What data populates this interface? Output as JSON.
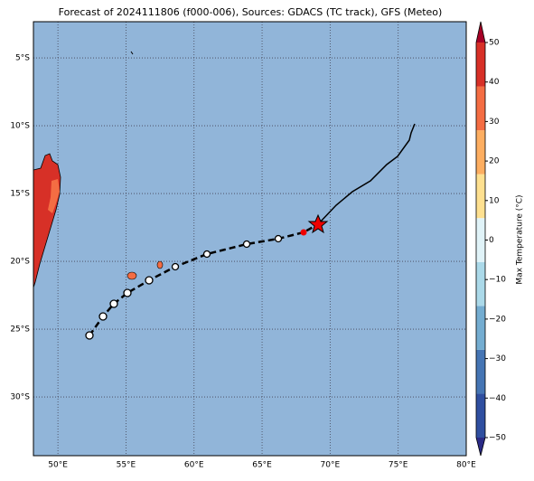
{
  "map": {
    "title": "Forecast of 2024111806 (f000-006), Sources: GDACS (TC track), GFS (Meteo)",
    "xlim": [
      48.2,
      80
    ],
    "ylim": [
      -34.33,
      -2.33
    ],
    "xticks": [
      {
        "value": 50,
        "label": "50°E"
      },
      {
        "value": 55,
        "label": "55°E"
      },
      {
        "value": 60,
        "label": "60°E"
      },
      {
        "value": 65,
        "label": "65°E"
      },
      {
        "value": 70,
        "label": "70°E"
      },
      {
        "value": 75,
        "label": "75°E"
      },
      {
        "value": 80,
        "label": "80°E"
      }
    ],
    "yticks": [
      {
        "value": -5,
        "label": "5°S"
      },
      {
        "value": -10,
        "label": "10°S"
      },
      {
        "value": -15,
        "label": "15°S"
      },
      {
        "value": -20,
        "label": "20°S"
      },
      {
        "value": -25,
        "label": "25°S"
      },
      {
        "value": -30,
        "label": "30°S"
      }
    ],
    "grid": true,
    "colorbar": {
      "label": "Max Temperature (°C)",
      "lim": [
        -50,
        50
      ],
      "ticks": [
        50,
        40,
        30,
        20,
        10,
        0,
        {
          "value": -10,
          "label": "−10"
        },
        {
          "value": -20,
          "label": "−20"
        },
        {
          "value": -30,
          "label": "−30"
        },
        {
          "value": -40,
          "label": "−40"
        },
        {
          "value": -50,
          "label": "−50"
        }
      ],
      "colors": [
        "#2a2a86",
        "#2f4fa0",
        "#4575b4",
        "#74add1",
        "#abd9e9",
        "#e0f3f8",
        "#fee090",
        "#fdae61",
        "#f46d43",
        "#d73027",
        "#a50026"
      ]
    }
  }
}
